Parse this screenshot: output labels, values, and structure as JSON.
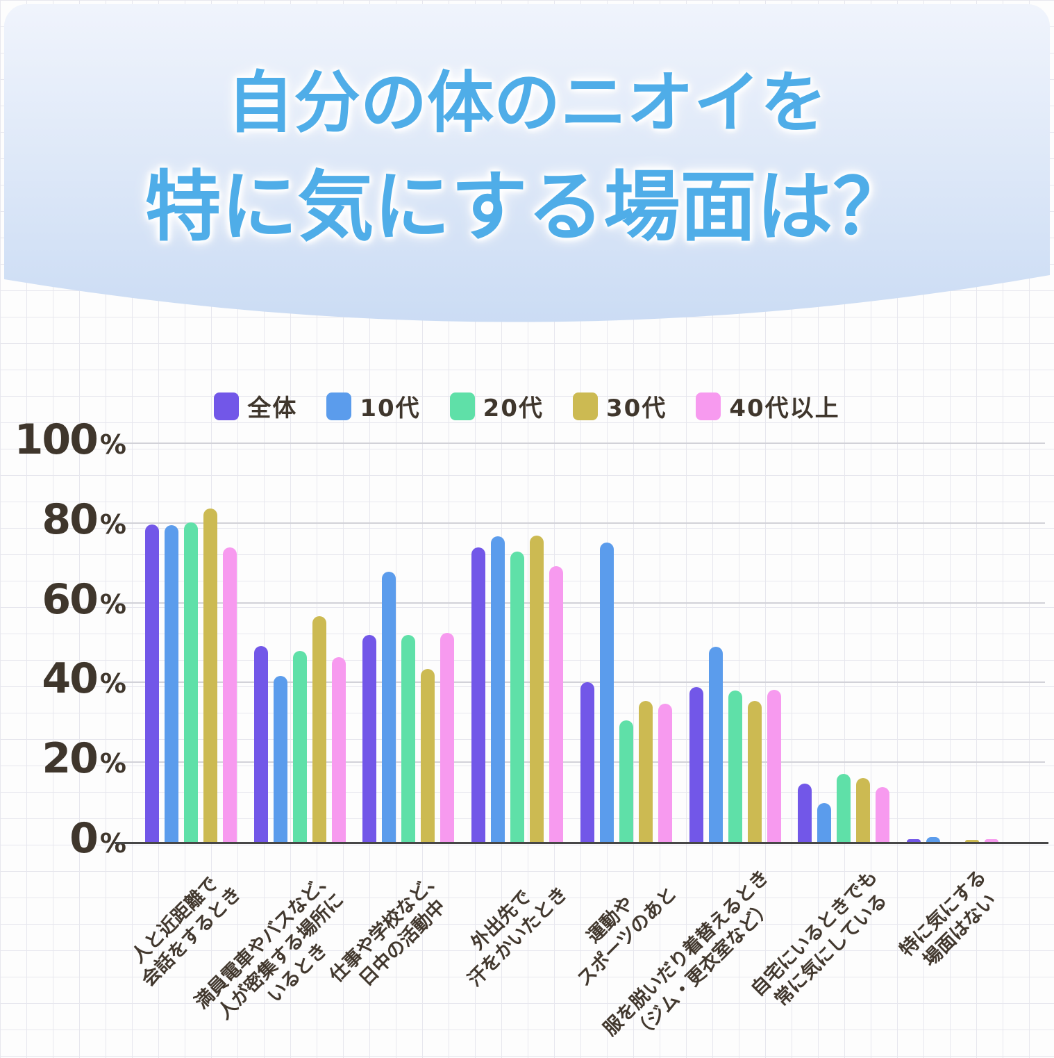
{
  "title": {
    "line1": "自分の体のニオイを",
    "line2": "特に気にする場面は？"
  },
  "colors": {
    "title_blue": "#4fade8",
    "header_gradient_top": "#f0f4fc",
    "header_gradient_bottom": "#cbdcf4",
    "text_dark": "#3f362c",
    "axis": "#474747",
    "major_gridline": "#d2d2d8",
    "minor_grid": "#e7e7ee"
  },
  "chart_data": {
    "type": "bar",
    "unit": "%",
    "ylim": [
      0,
      100
    ],
    "yticks": [
      0,
      20,
      40,
      60,
      80,
      100
    ],
    "grid": true,
    "legend_position": "top",
    "categories": [
      "人と近距離で会話をするとき",
      "満員電車やバスなど、人が密集する場所にいるとき",
      "仕事や学校など、日中の活動中",
      "外出先で汗をかいたとき",
      "運動やスポーツのあと",
      "服を脱いだり着替えるとき（ジム・更衣室など）",
      "自宅にいるときでも常に気にしている",
      "特に気にする場面はない"
    ],
    "category_label_lines": [
      [
        "人と近距離で",
        "会話をするとき"
      ],
      [
        "満員電車やバスなど、",
        "人が密集する場所に",
        "いるとき"
      ],
      [
        "仕事や学校など、",
        "日中の活動中"
      ],
      [
        "外出先で",
        "汗をかいたとき"
      ],
      [
        "運動や",
        "スポーツのあと"
      ],
      [
        "服を脱いだり着替えるとき",
        "（ジム・更衣室など）"
      ],
      [
        "自宅にいるときでも",
        "常に気にしている"
      ],
      [
        "特に気にする",
        "場面はない"
      ]
    ],
    "series": [
      {
        "name": "全体",
        "color": "#7257e8",
        "values": [
          79.6,
          49.2,
          52.0,
          73.9,
          40.1,
          38.9,
          14.6,
          0.7
        ]
      },
      {
        "name": "10代",
        "color": "#5b9cec",
        "values": [
          79.4,
          41.7,
          67.8,
          76.7,
          75.1,
          48.9,
          9.7,
          1.3
        ]
      },
      {
        "name": "20代",
        "color": "#5fe0a8",
        "values": [
          80.1,
          47.9,
          51.9,
          72.9,
          30.5,
          38.0,
          17.0,
          0.0
        ]
      },
      {
        "name": "30代",
        "color": "#ccba52",
        "values": [
          83.7,
          56.6,
          43.3,
          76.8,
          35.4,
          35.4,
          16.1,
          0.6
        ]
      },
      {
        "name": "40代以上",
        "color": "#f79aef",
        "values": [
          73.9,
          46.4,
          52.4,
          69.2,
          34.6,
          38.2,
          13.8,
          0.7
        ]
      }
    ]
  }
}
